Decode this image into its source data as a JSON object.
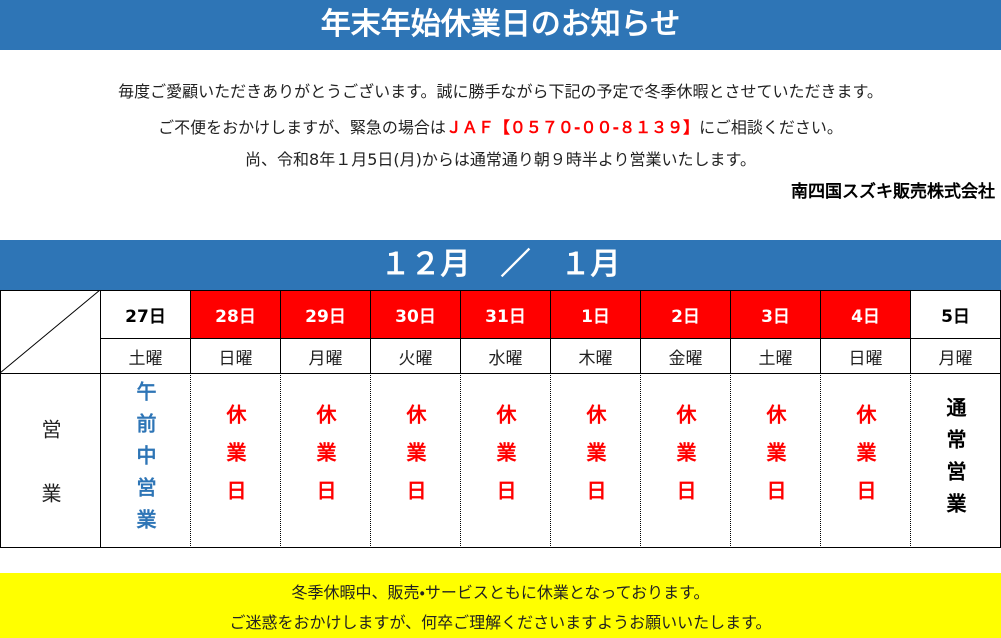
{
  "title": "年末年始休業日のお知らせ",
  "notice": {
    "line1": "毎度ご愛顧いただきありがとうございます。誠に勝手ながら下記の予定で冬季休暇とさせていただきます。",
    "line2": [
      "ご不便をおかけしますが、緊急の場合は",
      "ＪＡＦ【０５７０-００-８１３９】",
      "にご相談ください。"
    ],
    "line3": "尚、令和8年１月5日(月)からは通常通り朝９時半より営業いたします。",
    "company": "南四国スズキ販売株式会社"
  },
  "table": {
    "heading": "１２月　／　１月",
    "row_label": "営業",
    "columns": [
      {
        "date": "27日",
        "weekday": "土曜",
        "status": "午前中営業",
        "header_bg": "#ffffff",
        "header_color": "#000000",
        "status_color": "#2e75b6"
      },
      {
        "date": "28日",
        "weekday": "日曜",
        "status": "休業日",
        "header_bg": "#ff0000",
        "header_color": "#ffffff",
        "status_color": "#ff0000"
      },
      {
        "date": "29日",
        "weekday": "月曜",
        "status": "休業日",
        "header_bg": "#ff0000",
        "header_color": "#ffffff",
        "status_color": "#ff0000"
      },
      {
        "date": "30日",
        "weekday": "火曜",
        "status": "休業日",
        "header_bg": "#ff0000",
        "header_color": "#ffffff",
        "status_color": "#ff0000"
      },
      {
        "date": "31日",
        "weekday": "水曜",
        "status": "休業日",
        "header_bg": "#ff0000",
        "header_color": "#ffffff",
        "status_color": "#ff0000"
      },
      {
        "date": "1日",
        "weekday": "木曜",
        "status": "休業日",
        "header_bg": "#ff0000",
        "header_color": "#ffffff",
        "status_color": "#ff0000"
      },
      {
        "date": "2日",
        "weekday": "金曜",
        "status": "休業日",
        "header_bg": "#ff0000",
        "header_color": "#ffffff",
        "status_color": "#ff0000"
      },
      {
        "date": "3日",
        "weekday": "土曜",
        "status": "休業日",
        "header_bg": "#ff0000",
        "header_color": "#ffffff",
        "status_color": "#ff0000"
      },
      {
        "date": "4日",
        "weekday": "日曜",
        "status": "休業日",
        "header_bg": "#ff0000",
        "header_color": "#ffffff",
        "status_color": "#ff0000"
      },
      {
        "date": "5日",
        "weekday": "月曜",
        "status": "通常営業",
        "header_bg": "#ffffff",
        "header_color": "#000000",
        "status_color": "#000000"
      }
    ]
  },
  "footer": {
    "line1": "冬季休暇中、販売・サービスともに休業となっております。",
    "line2": "ご迷惑をおかけしますが、何卒ご理解くださいますようお願いいたします。"
  }
}
